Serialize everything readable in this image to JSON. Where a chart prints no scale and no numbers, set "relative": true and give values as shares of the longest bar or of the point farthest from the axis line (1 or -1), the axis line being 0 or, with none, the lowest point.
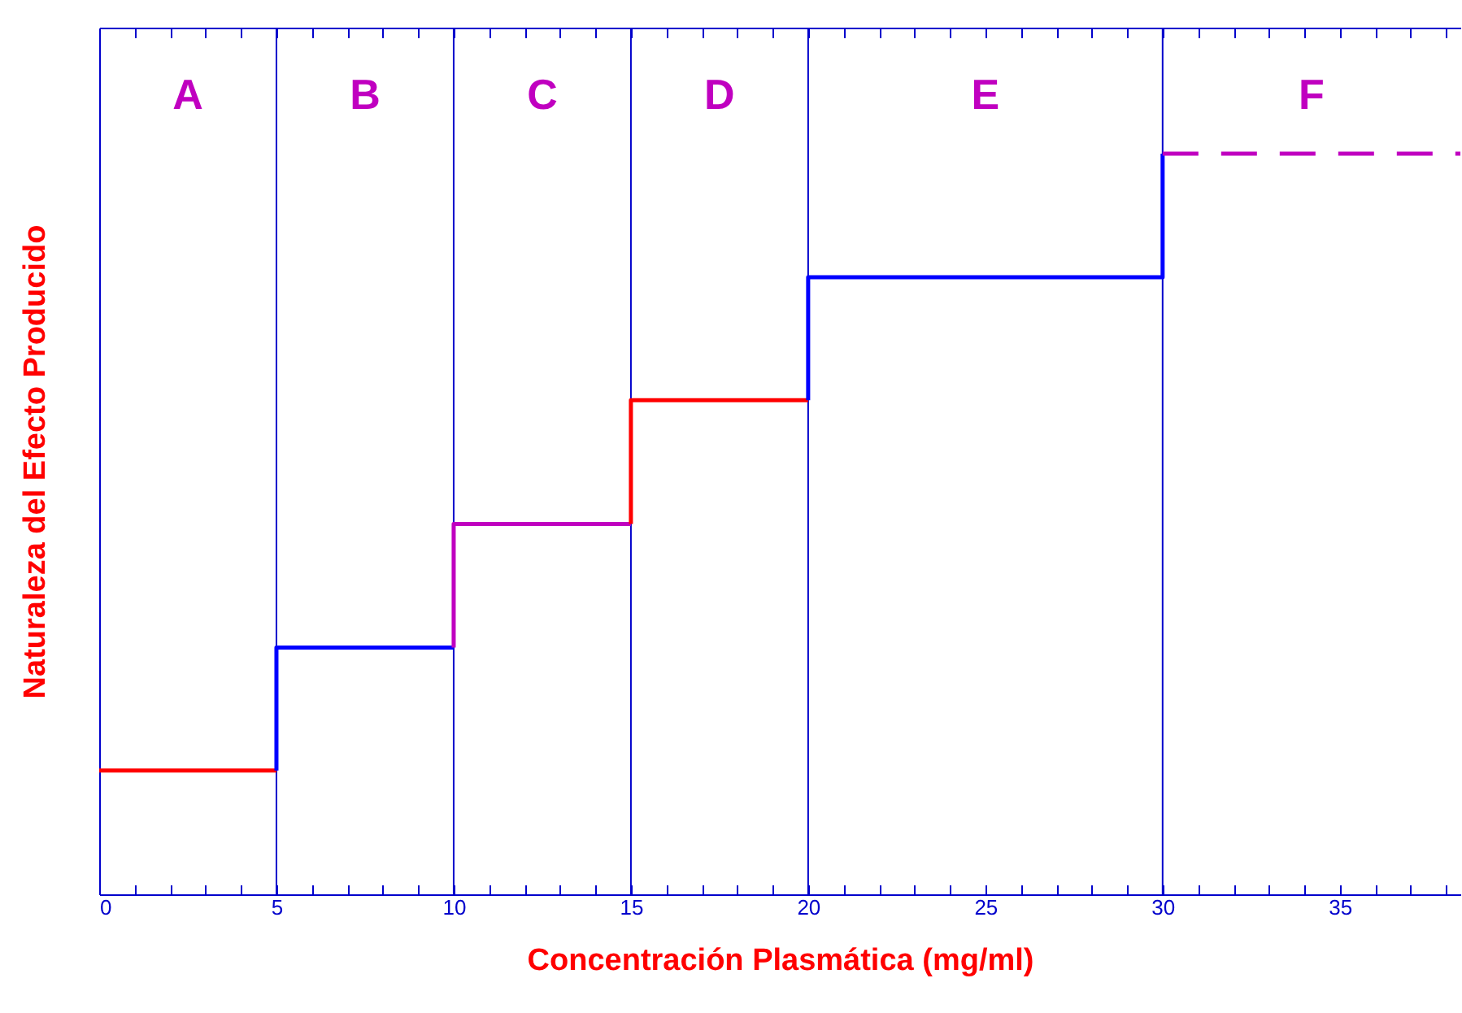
{
  "chart_data": {
    "type": "step",
    "relative": true,
    "xlabel": "Concentración Plasmática (mg/ml)",
    "ylabel": "Naturaleza del Efecto Producido",
    "xlim": [
      0,
      38.4
    ],
    "xticks": [
      0,
      {
        "value": 1,
        "label": null
      },
      {
        "value": 2,
        "label": null
      },
      {
        "value": 3,
        "label": null
      },
      {
        "value": 4,
        "label": null
      },
      5,
      {
        "value": 6,
        "label": null
      },
      {
        "value": 7,
        "label": null
      },
      {
        "value": 8,
        "label": null
      },
      {
        "value": 9,
        "label": null
      },
      10,
      {
        "value": 11,
        "label": null
      },
      {
        "value": 12,
        "label": null
      },
      {
        "value": 13,
        "label": null
      },
      {
        "value": 14,
        "label": null
      },
      15,
      {
        "value": 16,
        "label": null
      },
      {
        "value": 17,
        "label": null
      },
      {
        "value": 18,
        "label": null
      },
      {
        "value": 19,
        "label": null
      },
      20,
      {
        "value": 21,
        "label": null
      },
      {
        "value": 22,
        "label": null
      },
      {
        "value": 23,
        "label": null
      },
      {
        "value": 24,
        "label": null
      },
      25,
      {
        "value": 26,
        "label": null
      },
      {
        "value": 27,
        "label": null
      },
      {
        "value": 28,
        "label": null
      },
      {
        "value": 29,
        "label": null
      },
      30,
      {
        "value": 31,
        "label": null
      },
      {
        "value": 32,
        "label": null
      },
      {
        "value": 33,
        "label": null
      },
      {
        "value": 34,
        "label": null
      },
      35,
      {
        "value": 36,
        "label": null
      },
      {
        "value": 37,
        "label": null
      },
      {
        "value": 38,
        "label": null
      }
    ],
    "annotations": [
      "A",
      "B",
      "C",
      "D",
      "E",
      "F"
    ],
    "series": [
      {
        "color": "#ff0000",
        "x": [
          0,
          5
        ],
        "values": [
          0.167,
          0.167
        ]
      },
      {
        "color": "#0000ff",
        "x": [
          5,
          5,
          10
        ],
        "values": [
          0.167,
          0.333,
          0.333
        ]
      },
      {
        "color": "#c000c0",
        "x": [
          10,
          10,
          15
        ],
        "values": [
          0.333,
          0.5,
          0.5
        ]
      },
      {
        "color": "#ff0000",
        "x": [
          15,
          15,
          20
        ],
        "values": [
          0.5,
          0.667,
          0.667
        ]
      },
      {
        "color": "#0000ff",
        "x": [
          20,
          20,
          30,
          30
        ],
        "values": [
          0.667,
          0.833,
          0.833,
          1
        ]
      },
      {
        "color": "#c000c0",
        "line_style": "dashed",
        "x": [
          30,
          38.4
        ],
        "values": [
          1,
          1
        ]
      }
    ],
    "ref_lines": [
      {
        "axis": "x",
        "value": 5,
        "color": "#0000cc"
      },
      {
        "axis": "x",
        "value": 10,
        "color": "#0000cc"
      },
      {
        "axis": "x",
        "value": 15,
        "color": "#0000cc"
      },
      {
        "axis": "x",
        "value": 20,
        "color": "#0000cc"
      },
      {
        "axis": "x",
        "value": 30,
        "color": "#0000cc"
      }
    ]
  }
}
